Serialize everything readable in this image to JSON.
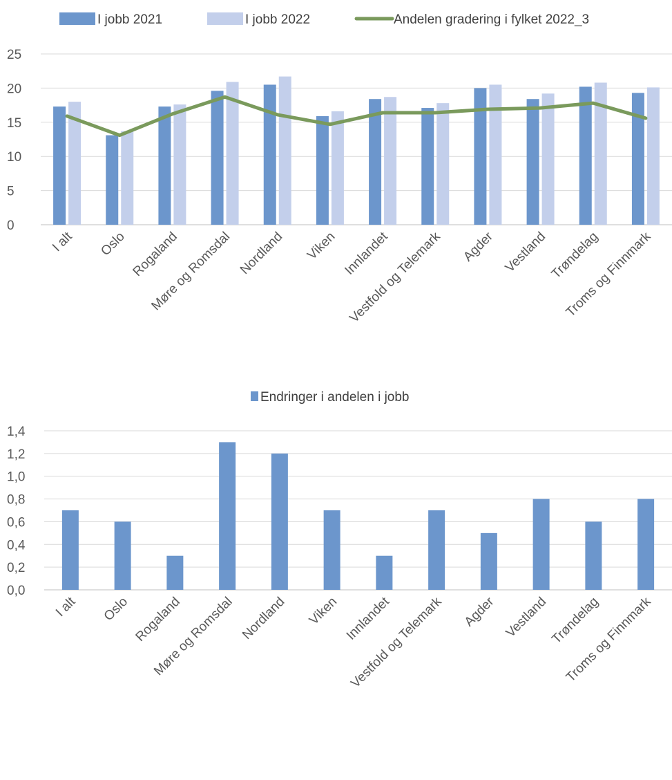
{
  "colors": {
    "series_2021": "#6C96CC",
    "series_2022": "#C3CFEB",
    "line_2022_3": "#7A9A5C",
    "change": "#6C96CC",
    "grid": "#D9D9D9",
    "axis": "#BFBFBF"
  },
  "chart_data": [
    {
      "type": "bar",
      "categories": [
        "I alt",
        "Oslo",
        "Rogaland",
        "Møre og Romsdal",
        "Nordland",
        "Viken",
        "Innlandet",
        "Vestfold og Telemark",
        "Agder",
        "Vestland",
        "Trøndelag",
        "Troms og Finnmark"
      ],
      "series": [
        {
          "name": "I jobb 2021",
          "kind": "bar",
          "values": [
            17.3,
            13.1,
            17.3,
            19.6,
            20.5,
            15.9,
            18.4,
            17.1,
            20.0,
            18.4,
            20.2,
            19.3
          ]
        },
        {
          "name": "I jobb 2022",
          "kind": "bar",
          "values": [
            18.0,
            13.7,
            17.6,
            20.9,
            21.7,
            16.6,
            18.7,
            17.8,
            20.5,
            19.2,
            20.8,
            20.1
          ]
        },
        {
          "name": "Andelen gradering i fylket 2022_3",
          "kind": "line",
          "values": [
            15.9,
            13.1,
            16.2,
            18.7,
            16.1,
            14.7,
            16.4,
            16.4,
            16.9,
            17.1,
            17.8,
            15.6
          ]
        }
      ],
      "yticks": [
        "0",
        "5",
        "10",
        "15",
        "20",
        "25"
      ],
      "ylim": [
        0,
        25
      ],
      "grid": true,
      "legend": "top"
    },
    {
      "type": "bar",
      "categories": [
        "I alt",
        "Oslo",
        "Rogaland",
        "Møre og Romsdal",
        "Nordland",
        "Viken",
        "Innlandet",
        "Vestfold og Telemark",
        "Agder",
        "Vestland",
        "Trøndelag",
        "Troms og Finnmark"
      ],
      "series": [
        {
          "name": "Endringer i andelen i jobb",
          "values": [
            0.7,
            0.6,
            0.3,
            1.3,
            1.2,
            0.7,
            0.3,
            0.7,
            0.5,
            0.8,
            0.6,
            0.8
          ]
        }
      ],
      "yticks": [
        "0,0",
        "0,2",
        "0,4",
        "0,6",
        "0,8",
        "1,0",
        "1,2",
        "1,4"
      ],
      "ylim": [
        0,
        1.4
      ],
      "grid": true,
      "legend": "top"
    }
  ]
}
